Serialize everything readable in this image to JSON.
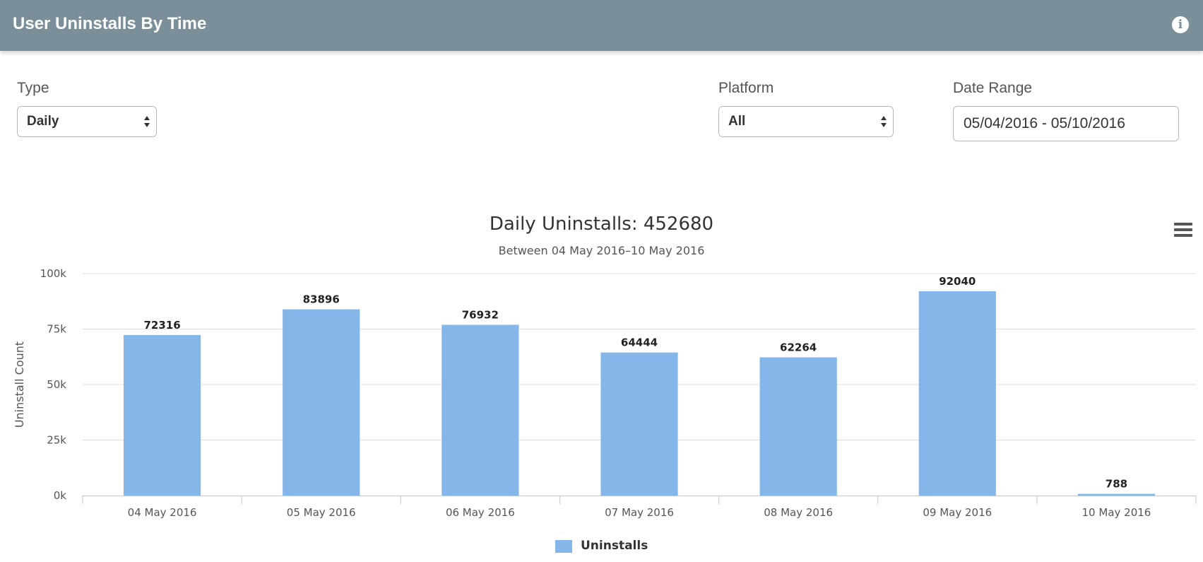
{
  "panel": {
    "title": "User Uninstalls By Time",
    "info_icon": "info-icon"
  },
  "filters": {
    "type": {
      "label": "Type",
      "value": "Daily"
    },
    "platform": {
      "label": "Platform",
      "value": "All"
    },
    "date_range": {
      "label": "Date Range",
      "value": "05/04/2016 - 05/10/2016"
    }
  },
  "chart_menu_icon": "hamburger-menu-icon",
  "colors": {
    "header_bg": "#7b8f9b",
    "bar": "#85b6e9"
  },
  "chart_data": {
    "type": "bar",
    "title": "Daily Uninstalls: 452680",
    "subtitle": "Between 04 May 2016–10 May 2016",
    "xlabel": "",
    "ylabel": "Uninstall Count",
    "categories": [
      "04 May 2016",
      "05 May 2016",
      "06 May 2016",
      "07 May 2016",
      "08 May 2016",
      "09 May 2016",
      "10 May 2016"
    ],
    "series": [
      {
        "name": "Uninstalls",
        "values": [
          72316,
          83896,
          76932,
          64444,
          62264,
          92040,
          788
        ]
      }
    ],
    "ylim": [
      0,
      100000
    ],
    "y_ticks": [
      "0k",
      "25k",
      "50k",
      "75k",
      "100k"
    ],
    "grid": true,
    "legend": "bottom-center",
    "data_labels": true
  }
}
